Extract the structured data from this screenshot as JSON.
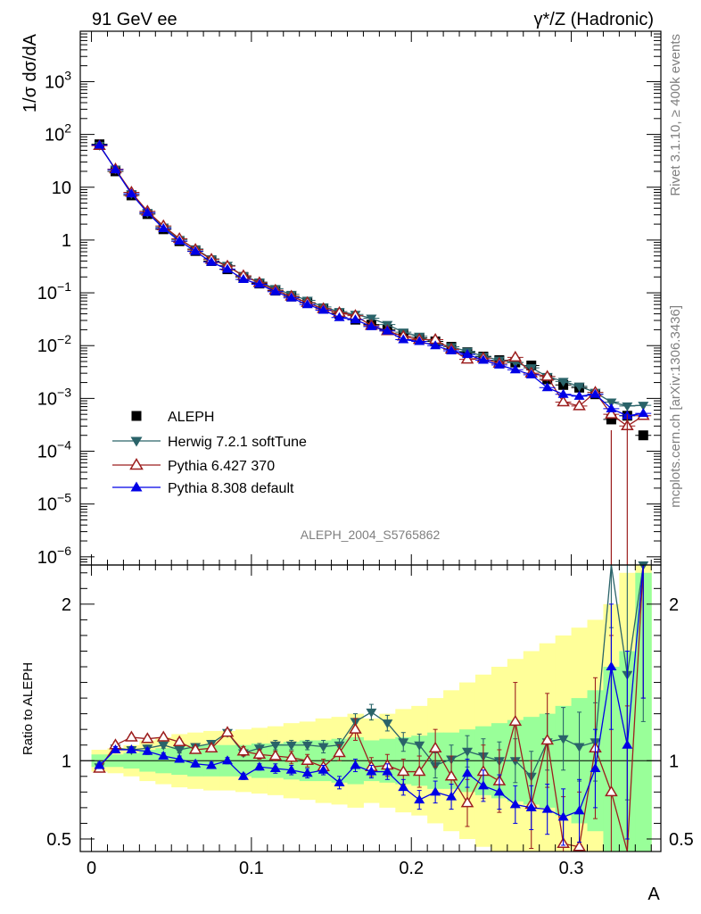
{
  "header": {
    "left": "91 GeV ee",
    "right": "γ*/Z (Hadronic)"
  },
  "side_labels": {
    "rivet": "Rivet 3.1.10, ≥ 400k events",
    "mcplots": "mcplots.cern.ch [arXiv:1306.3436]"
  },
  "watermark": "ALEPH_2004_S5765862",
  "chart_data": [
    {
      "type": "line",
      "panel": "main",
      "ylabel": "1/σ dσ/dA",
      "yscale": "log",
      "ylim": [
        7e-07,
        9000
      ],
      "xlim": [
        -0.007,
        0.356
      ],
      "yticks": [
        {
          "v": 1e-06,
          "base": "10",
          "exp": "−6"
        },
        {
          "v": 1e-05,
          "base": "10",
          "exp": "−5"
        },
        {
          "v": 0.0001,
          "base": "10",
          "exp": "−4"
        },
        {
          "v": 0.001,
          "base": "10",
          "exp": "−3"
        },
        {
          "v": 0.01,
          "base": "10",
          "exp": "−2"
        },
        {
          "v": 0.1,
          "base": "10",
          "exp": "−1"
        },
        {
          "v": 1,
          "base": "1",
          "exp": ""
        },
        {
          "v": 10,
          "base": "10",
          "exp": ""
        },
        {
          "v": 100,
          "base": "10",
          "exp": "2"
        },
        {
          "v": 1000,
          "base": "10",
          "exp": "3"
        }
      ],
      "x": [
        0.005,
        0.015,
        0.025,
        0.035,
        0.045,
        0.055,
        0.065,
        0.075,
        0.085,
        0.095,
        0.105,
        0.115,
        0.125,
        0.135,
        0.145,
        0.155,
        0.165,
        0.175,
        0.185,
        0.195,
        0.205,
        0.215,
        0.225,
        0.235,
        0.245,
        0.255,
        0.265,
        0.275,
        0.285,
        0.295,
        0.305,
        0.315,
        0.325,
        0.335,
        0.345
      ],
      "series": [
        {
          "name": "ALEPH",
          "color": "#000000",
          "marker": "square",
          "values": [
            65,
            20,
            7.0,
            3.1,
            1.6,
            0.95,
            0.62,
            0.4,
            0.28,
            0.2,
            0.15,
            0.11,
            0.085,
            0.065,
            0.05,
            0.04,
            0.031,
            0.025,
            0.02,
            0.0165,
            0.014,
            0.012,
            0.0095,
            0.0075,
            0.0062,
            0.0053,
            0.0048,
            0.0042,
            0.0023,
            0.0018,
            0.0016,
            0.0012,
            0.0004,
            0.00047,
            0.0002
          ]
        },
        {
          "name": "Herwig 7.2.1 softTune",
          "color": "#2a6369",
          "marker": "tri-down",
          "values": [
            62,
            22,
            7.5,
            3.3,
            1.75,
            1.02,
            0.68,
            0.44,
            0.33,
            0.21,
            0.16,
            0.12,
            0.093,
            0.072,
            0.054,
            0.044,
            0.039,
            0.033,
            0.025,
            0.018,
            0.015,
            0.011,
            0.0095,
            0.0078,
            0.0063,
            0.0053,
            0.0048,
            0.0038,
            0.0026,
            0.0021,
            0.0017,
            0.0013,
            0.00085,
            0.00072,
            0.00074
          ]
        },
        {
          "name": "Pythia 6.427 370",
          "color": "#9c1e1e",
          "marker": "tri-up-open",
          "values": [
            61,
            22,
            8.0,
            3.5,
            1.85,
            1.06,
            0.66,
            0.43,
            0.32,
            0.21,
            0.155,
            0.112,
            0.086,
            0.065,
            0.05,
            0.042,
            0.037,
            0.024,
            0.019,
            0.015,
            0.013,
            0.013,
            0.0085,
            0.0055,
            0.0058,
            0.0046,
            0.006,
            0.003,
            0.0026,
            0.00085,
            0.00072,
            0.0013,
            0.0005,
            0.0003,
            0.00047
          ]
        },
        {
          "name": "Pythia 8.308 default",
          "color": "#0000e6",
          "marker": "tri-up",
          "values": [
            63,
            21.5,
            7.5,
            3.3,
            1.65,
            0.96,
            0.61,
            0.38,
            0.28,
            0.18,
            0.145,
            0.105,
            0.08,
            0.06,
            0.047,
            0.034,
            0.031,
            0.023,
            0.019,
            0.013,
            0.012,
            0.01,
            0.008,
            0.0068,
            0.0053,
            0.0043,
            0.0035,
            0.0028,
            0.0016,
            0.0012,
            0.0011,
            0.0012,
            0.00064,
            0.00047,
            0.00052
          ]
        }
      ]
    },
    {
      "type": "line",
      "panel": "ratio",
      "ylabel": "Ratio to ALEPH",
      "ylim": [
        0.42,
        2.25
      ],
      "yticks": [
        0.5,
        1,
        2
      ],
      "xlabel": "A",
      "xticks": [
        0,
        0.1,
        0.2,
        0.3
      ],
      "x": [
        0.005,
        0.015,
        0.025,
        0.035,
        0.045,
        0.055,
        0.065,
        0.075,
        0.085,
        0.095,
        0.105,
        0.115,
        0.125,
        0.135,
        0.145,
        0.155,
        0.165,
        0.175,
        0.185,
        0.195,
        0.205,
        0.215,
        0.225,
        0.235,
        0.245,
        0.255,
        0.265,
        0.275,
        0.285,
        0.295,
        0.305,
        0.315,
        0.325,
        0.335,
        0.345
      ],
      "band_green": [
        0.04,
        0.04,
        0.05,
        0.07,
        0.08,
        0.09,
        0.1,
        0.1,
        0.1,
        0.1,
        0.11,
        0.11,
        0.12,
        0.13,
        0.13,
        0.14,
        0.15,
        0.13,
        0.14,
        0.15,
        0.16,
        0.18,
        0.18,
        0.2,
        0.22,
        0.24,
        0.26,
        0.28,
        0.3,
        0.35,
        0.4,
        0.45,
        0.6,
        0.7,
        1.2
      ],
      "band_yellow": [
        0.07,
        0.08,
        0.1,
        0.13,
        0.15,
        0.17,
        0.18,
        0.19,
        0.19,
        0.2,
        0.21,
        0.22,
        0.24,
        0.25,
        0.27,
        0.28,
        0.3,
        0.27,
        0.3,
        0.33,
        0.35,
        0.4,
        0.45,
        0.5,
        0.55,
        0.6,
        0.65,
        0.7,
        0.75,
        0.8,
        0.85,
        0.9,
        1.0,
        1.2,
        1.5
      ],
      "series": [
        {
          "name": "Herwig 7.2.1 softTune",
          "color": "#2a6369",
          "marker": "tri-down",
          "values": [
            0.96,
            1.08,
            1.07,
            1.08,
            1.1,
            1.07,
            1.09,
            1.11,
            1.18,
            1.05,
            1.08,
            1.1,
            1.1,
            1.1,
            1.09,
            1.1,
            1.25,
            1.31,
            1.24,
            1.12,
            1.1,
            0.97,
            1.01,
            1.06,
            1.03,
            1.0,
            1.0,
            0.9,
            1.12,
            1.14,
            1.09,
            1.12,
            2.35,
            1.55,
            2.25
          ],
          "err": [
            0.02,
            0.02,
            0.02,
            0.02,
            0.02,
            0.02,
            0.02,
            0.02,
            0.02,
            0.02,
            0.03,
            0.03,
            0.03,
            0.03,
            0.04,
            0.04,
            0.05,
            0.05,
            0.05,
            0.06,
            0.07,
            0.08,
            0.09,
            0.1,
            0.11,
            0.12,
            0.14,
            0.16,
            0.18,
            0.2,
            0.22,
            0.25,
            0.5,
            0.8,
            1.0
          ]
        },
        {
          "name": "Pythia 6.427 370",
          "color": "#9c1e1e",
          "marker": "tri-up-open",
          "values": [
            0.95,
            1.1,
            1.15,
            1.14,
            1.15,
            1.12,
            1.07,
            1.08,
            1.18,
            1.06,
            1.04,
            1.03,
            1.02,
            1.0,
            0.96,
            1.05,
            1.2,
            0.96,
            0.97,
            0.93,
            0.93,
            1.08,
            0.9,
            0.73,
            0.93,
            0.87,
            1.25,
            0.72,
            1.13,
            0.47,
            0.45,
            1.08,
            0.8,
            0.35,
            2.4
          ],
          "err": [
            0.02,
            0.02,
            0.02,
            0.02,
            0.02,
            0.02,
            0.02,
            0.02,
            0.02,
            0.03,
            0.03,
            0.03,
            0.04,
            0.04,
            0.05,
            0.05,
            0.07,
            0.06,
            0.07,
            0.08,
            0.1,
            0.12,
            0.13,
            0.15,
            0.17,
            0.2,
            0.25,
            0.28,
            0.3,
            0.3,
            0.35,
            0.45,
            1.0,
            1.0,
            1.0
          ]
        },
        {
          "name": "Pythia 8.308 default",
          "color": "#0000e6",
          "marker": "tri-up",
          "values": [
            0.97,
            1.07,
            1.07,
            1.06,
            1.03,
            1.01,
            0.98,
            0.97,
            1.0,
            0.9,
            0.96,
            0.95,
            0.94,
            0.92,
            0.94,
            0.86,
            0.97,
            0.93,
            0.93,
            0.83,
            0.75,
            0.8,
            0.77,
            0.92,
            0.84,
            0.8,
            0.72,
            0.7,
            0.69,
            0.64,
            0.68,
            0.95,
            1.6,
            1.1,
            2.3
          ],
          "err": [
            0.02,
            0.02,
            0.02,
            0.02,
            0.02,
            0.02,
            0.02,
            0.02,
            0.02,
            0.02,
            0.02,
            0.03,
            0.03,
            0.03,
            0.03,
            0.04,
            0.04,
            0.04,
            0.05,
            0.05,
            0.06,
            0.07,
            0.08,
            0.09,
            0.1,
            0.11,
            0.12,
            0.14,
            0.16,
            0.18,
            0.2,
            0.25,
            0.4,
            0.6,
            0.9
          ]
        }
      ]
    }
  ]
}
